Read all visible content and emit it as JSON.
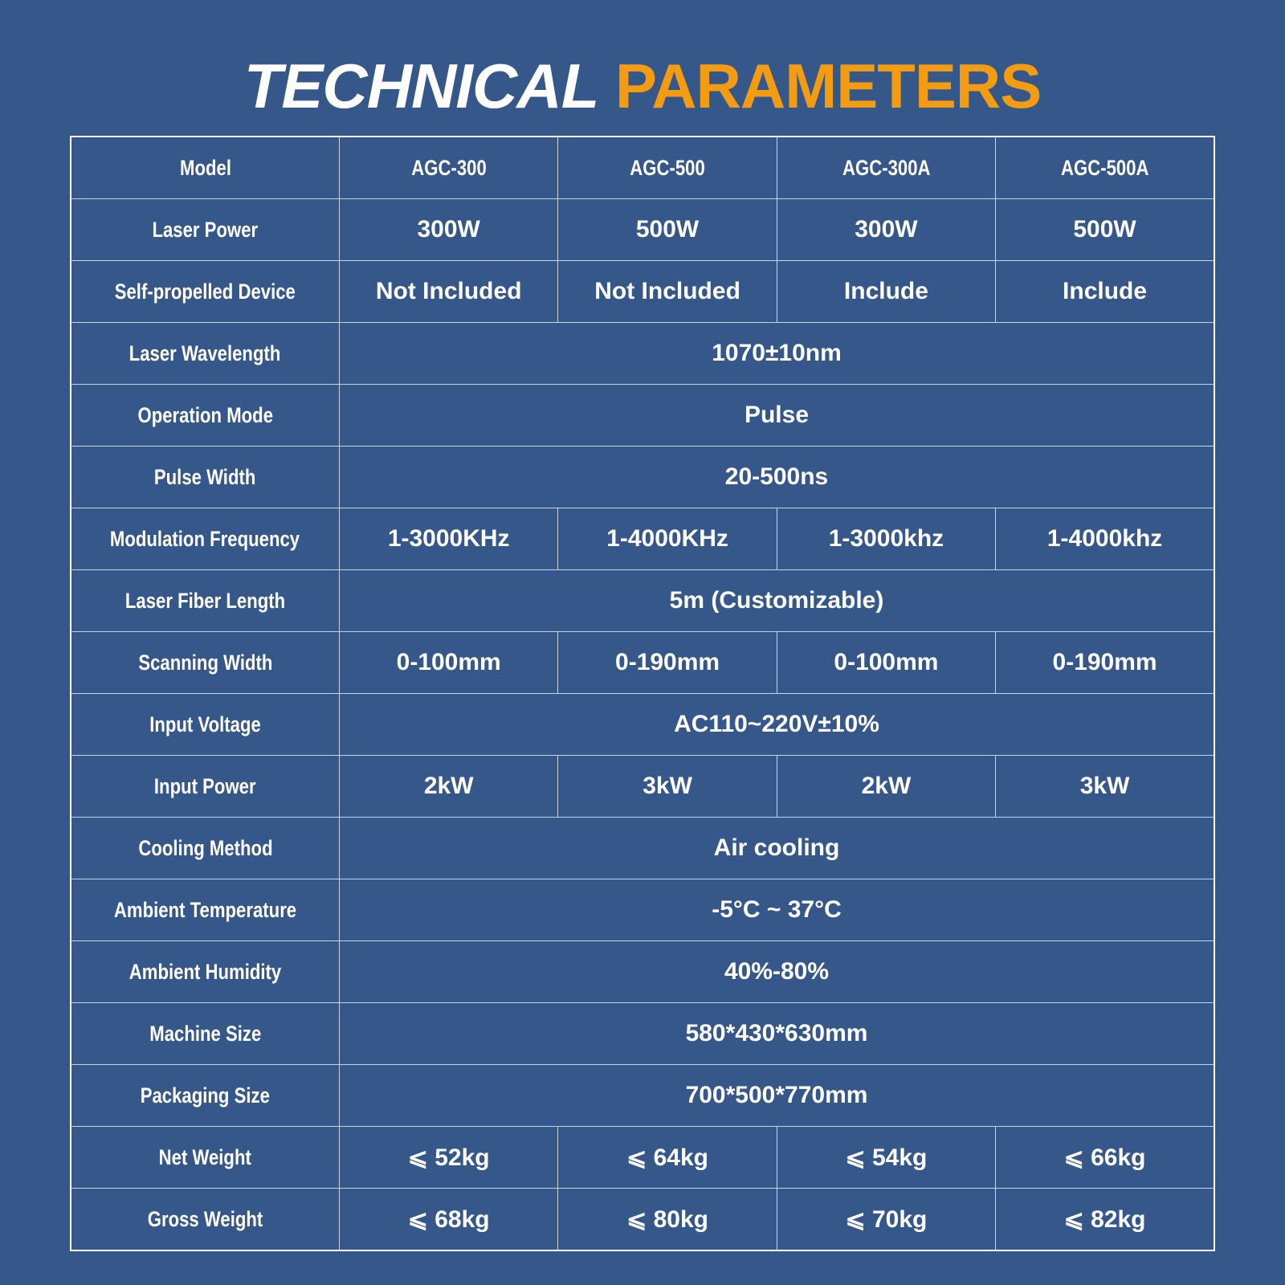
{
  "title": {
    "part1": "TECHNICAL",
    "part2": "PARAMETERS"
  },
  "colors": {
    "background": "#35578a",
    "accent": "#f39c12",
    "text": "#ffffff"
  },
  "rows": [
    {
      "label": "Model",
      "values": [
        "AGC-300",
        "AGC-500",
        "AGC-300A",
        "AGC-500A"
      ]
    },
    {
      "label": "Laser Power",
      "values": [
        "300W",
        "500W",
        "300W",
        "500W"
      ]
    },
    {
      "label": "Self-propelled Device",
      "values": [
        "Not Included",
        "Not Included",
        "Include",
        "Include"
      ]
    },
    {
      "label": "Laser Wavelength",
      "values": [
        "1070±10nm"
      ]
    },
    {
      "label": "Operation Mode",
      "values": [
        "Pulse"
      ]
    },
    {
      "label": "Pulse Width",
      "values": [
        "20-500ns"
      ]
    },
    {
      "label": "Modulation Frequency",
      "values": [
        "1-3000KHz",
        "1-4000KHz",
        "1-3000khz",
        "1-4000khz"
      ]
    },
    {
      "label": "Laser Fiber Length",
      "values": [
        "5m (Customizable)"
      ]
    },
    {
      "label": "Scanning Width",
      "values": [
        "0-100mm",
        "0-190mm",
        "0-100mm",
        "0-190mm"
      ]
    },
    {
      "label": "Input Voltage",
      "values": [
        "AC110~220V±10%"
      ]
    },
    {
      "label": "Input Power",
      "values": [
        "2kW",
        "3kW",
        "2kW",
        "3kW"
      ]
    },
    {
      "label": "Cooling Method",
      "values": [
        "Air cooling"
      ]
    },
    {
      "label": "Ambient Temperature",
      "values": [
        "-5°C ~ 37°C"
      ]
    },
    {
      "label": "Ambient Humidity",
      "values": [
        "40%-80%"
      ]
    },
    {
      "label": "Machine Size",
      "values": [
        "580*430*630mm"
      ]
    },
    {
      "label": "Packaging Size",
      "values": [
        "700*500*770mm"
      ]
    },
    {
      "label": "Net Weight",
      "values": [
        "⩽ 52kg",
        "⩽ 64kg",
        "⩽ 54kg",
        "⩽ 66kg"
      ]
    },
    {
      "label": "Gross Weight",
      "values": [
        "⩽ 68kg",
        "⩽ 80kg",
        "⩽ 70kg",
        "⩽ 82kg"
      ]
    }
  ]
}
